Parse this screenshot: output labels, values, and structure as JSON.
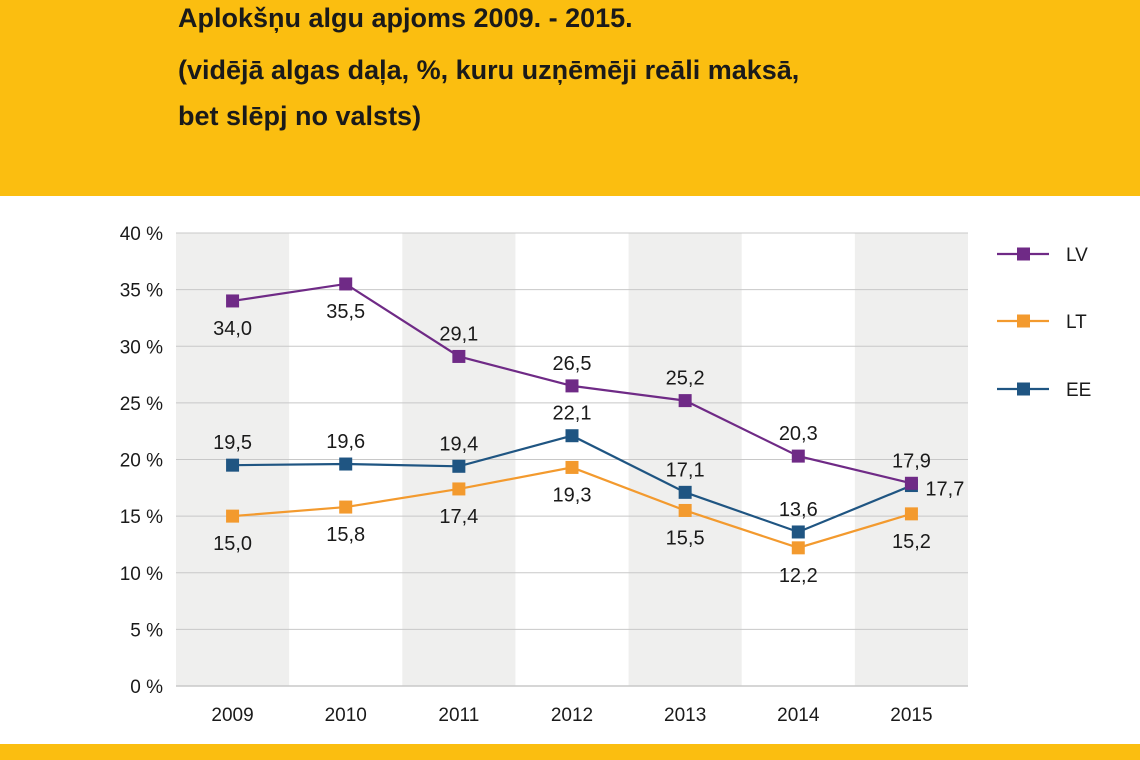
{
  "header": {
    "title_lines": [
      "Aplokšņu algu apjoms 2009. - 2015.",
      "(vidējā algas daļa, %, kuru uzņēmēji reāli maksā,",
      "bet slēpj no valsts)"
    ]
  },
  "colors": {
    "header_bg": "#fbbe10",
    "LV": "#6f2a86",
    "LT": "#f39a2e",
    "EE": "#1f5582",
    "band": "#efefee",
    "grid": "#c8c8c8"
  },
  "chart_data": {
    "type": "line",
    "title": "Aplokšņu algu apjoms 2009. - 2015.",
    "x": [
      "2009",
      "2010",
      "2011",
      "2012",
      "2013",
      "2014",
      "2015"
    ],
    "y_ticks": [
      "0 %",
      "5 %",
      "10 %",
      "15 %",
      "20 %",
      "25 %",
      "30 %",
      "35 %",
      "40 %"
    ],
    "ylim": [
      0,
      40
    ],
    "grid": true,
    "legend_position": "right",
    "series": [
      {
        "name": "LV",
        "values": [
          34.0,
          35.5,
          29.1,
          26.5,
          25.2,
          20.3,
          17.9
        ],
        "labels": [
          "34,0",
          "35,5",
          "29,1",
          "26,5",
          "25,2",
          "20,3",
          "17,9"
        ]
      },
      {
        "name": "LT",
        "values": [
          15.0,
          15.8,
          17.4,
          19.3,
          15.5,
          12.2,
          15.2
        ],
        "labels": [
          "15,0",
          "15,8",
          "17,4",
          "19,3",
          "15,5",
          "12,2",
          "15,2"
        ]
      },
      {
        "name": "EE",
        "values": [
          19.5,
          19.6,
          19.4,
          22.1,
          17.1,
          13.6,
          17.7
        ],
        "labels": [
          "19,5",
          "19,6",
          "19,4",
          "22,1",
          "17,1",
          "13,6",
          "17,7"
        ]
      }
    ]
  }
}
